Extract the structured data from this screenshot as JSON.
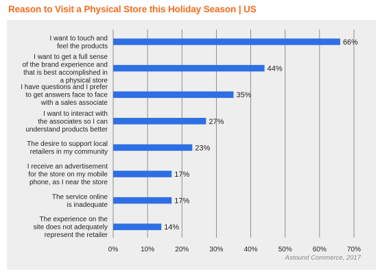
{
  "title": "Reason to Visit a Physical Store this Holiday Season | US",
  "source": "Astound Commerce, 2017",
  "colors": {
    "title": "#f26b1d",
    "bar": "#2f6fe4",
    "panel": "#eeeeee",
    "grid": "#777777"
  },
  "chart_data": {
    "type": "bar",
    "orientation": "horizontal",
    "categories": [
      [
        "I want to touch and",
        "feel the products"
      ],
      [
        "I want to get a full sense",
        "of the brand experience and",
        "that is best accomplished in",
        "a physical store"
      ],
      [
        "I have questions and I prefer",
        "to get answers face to face",
        "with a sales associate"
      ],
      [
        "I want to interact with",
        "the associates so I can",
        "understand products better"
      ],
      [
        "The desire to support local",
        "retailers in my community"
      ],
      [
        "I receive an advertisement",
        "for the store on my mobile",
        "phone, as I near the store"
      ],
      [
        "The service online",
        "is inadequate"
      ],
      [
        "The experience on the",
        "site does not adequately",
        "represent the retailer"
      ]
    ],
    "values": [
      66,
      44,
      35,
      27,
      23,
      17,
      17,
      14
    ],
    "value_labels": [
      "66%",
      "44%",
      "35%",
      "27%",
      "23%",
      "17%",
      "17%",
      "14%"
    ],
    "xlim": [
      0,
      70
    ],
    "xticks": [
      0,
      10,
      20,
      30,
      40,
      50,
      60,
      70
    ],
    "xtick_labels": [
      "0%",
      "10%",
      "20%",
      "30%",
      "40%",
      "50%",
      "60%",
      "70%"
    ],
    "grid": "vertical"
  }
}
